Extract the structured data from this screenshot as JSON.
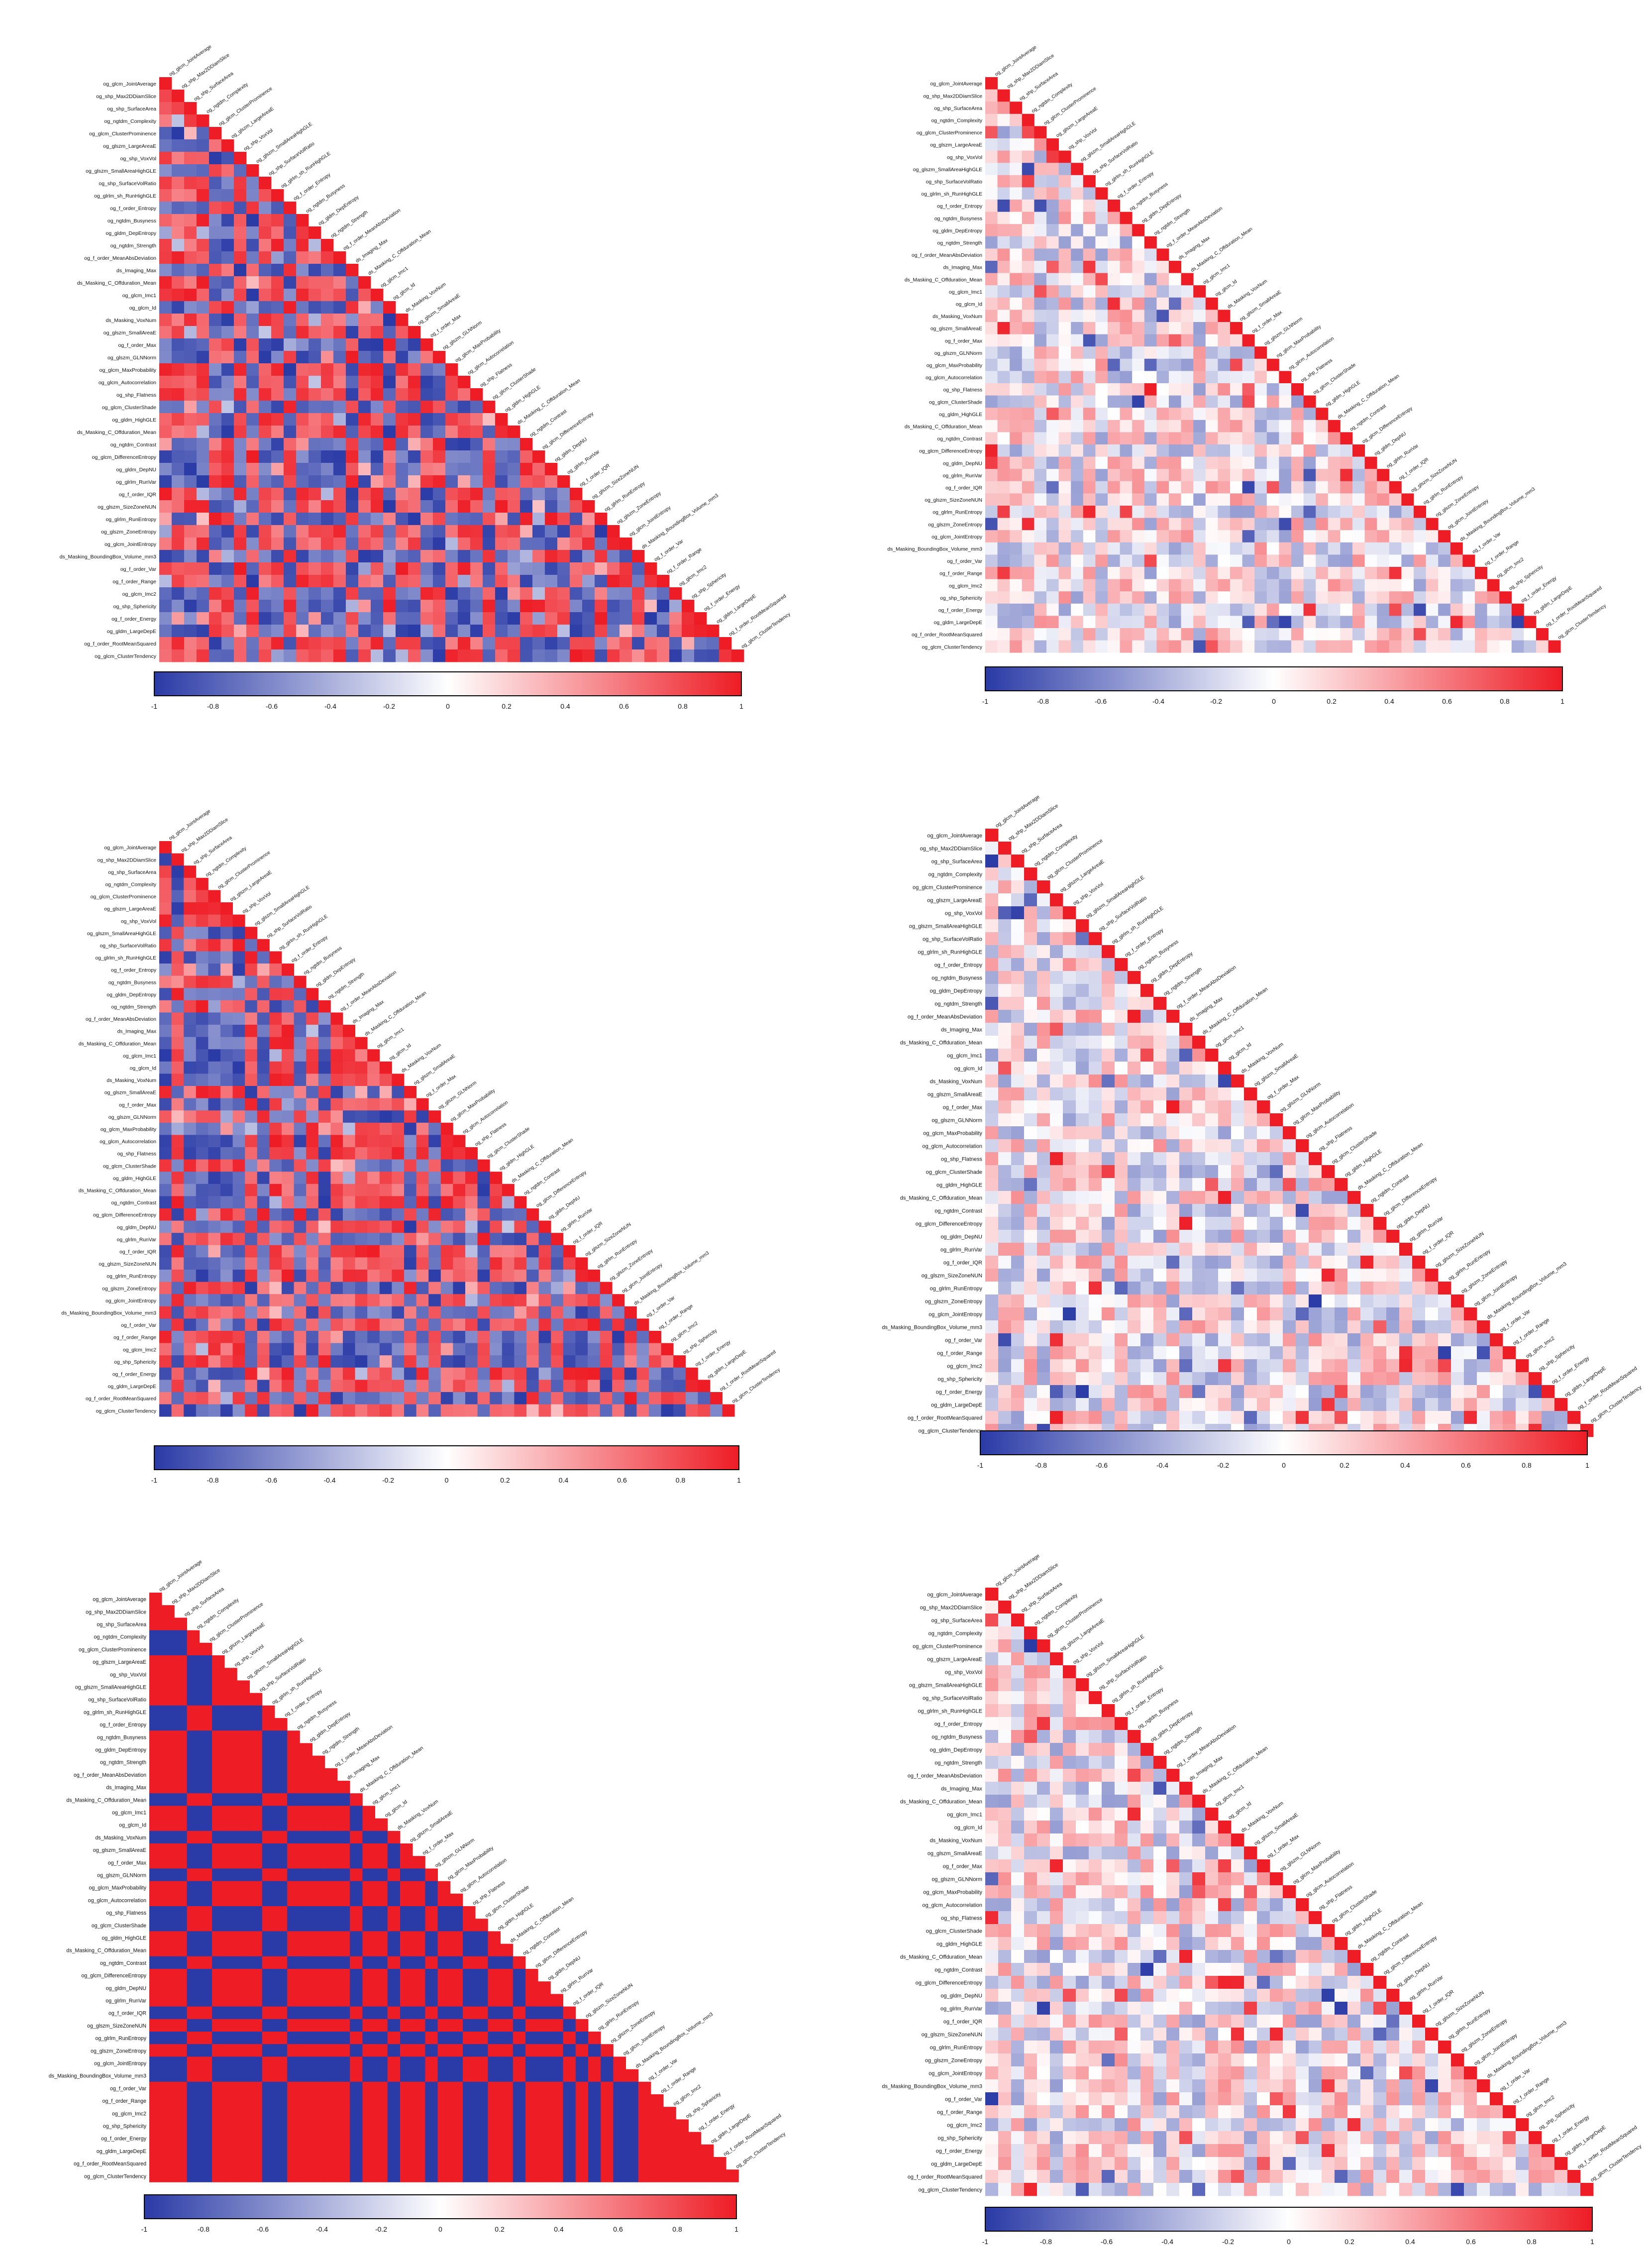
{
  "variables": [
    "og_glcm_JointAverage",
    "og_shp_Max2DDiamSlice",
    "og_shp_SurfaceArea",
    "og_ngtdm_Complexity",
    "og_glcm_ClusterProminence",
    "og_glszm_LargeAreaE",
    "og_shp_VoxVol",
    "og_glszm_SmallAreaHighGLE",
    "og_shp_SurfaceVolRatio",
    "og_glrlm_sh_RunHighGLE",
    "og_f_order_Entropy",
    "og_ngtdm_Busyness",
    "og_gldm_DepEntropy",
    "og_ngtdm_Strength",
    "og_f_order_MeanAbsDeviation",
    "ds_Imaging_Max",
    "ds_Masking_C_Offduration_Mean",
    "og_glcm_Imc1",
    "og_glcm_Id",
    "ds_Masking_VoxNum",
    "og_glszm_SmallAreaE",
    "og_f_order_Max",
    "og_glszm_GLNNorm",
    "og_glcm_MaxProbability",
    "og_glcm_Autocorrelation",
    "og_shp_Flatness",
    "og_glcm_ClusterShade",
    "og_gldm_HighGLE",
    "ds_Masking_C_Offduration_Mean",
    "og_ngtdm_Contrast",
    "og_glcm_DifferenceEntropy",
    "og_gldm_DepNU",
    "og_glrlm_RunVar",
    "og_f_order_IQR",
    "og_glszm_SizeZoneNUN",
    "og_glrlm_RunEntropy",
    "og_glszm_ZoneEntropy",
    "og_glcm_JointEntropy",
    "ds_Masking_BoundingBox_Volume_mm3",
    "og_f_order_Var",
    "og_f_order_Range",
    "og_glcm_Imc2",
    "og_shp_Sphericity",
    "og_f_order_Energy",
    "og_gldm_LargeDepE",
    "og_f_order_RootMeanSquared",
    "og_glcm_ClusterTendency"
  ],
  "colorbar": {
    "ticks": [
      "-1",
      "-0.8",
      "-0.6",
      "-0.4",
      "-0.2",
      "0",
      "0.2",
      "0.4",
      "0.6",
      "0.8",
      "1"
    ],
    "colors": {
      "negative": "#2a3aa6",
      "neutral": "#ffffff",
      "positive": "#ee1c25"
    }
  },
  "chart_data": [
    {
      "type": "heatmap",
      "position": "top-left",
      "matrix": "lower-triangular correlation",
      "value_range": [
        -1,
        1
      ],
      "pattern": "mixed strong positive/negative blocks",
      "seed": 11,
      "strength": 0.95,
      "mix": 0.55
    },
    {
      "type": "heatmap",
      "position": "top-right",
      "matrix": "lower-triangular correlation",
      "value_range": [
        -1,
        1
      ],
      "pattern": "mostly weak correlations, scattered strong cells",
      "seed": 23,
      "strength": 0.35,
      "mix": 0.6
    },
    {
      "type": "heatmap",
      "position": "middle-left",
      "matrix": "lower-triangular correlation",
      "value_range": [
        -1,
        1
      ],
      "pattern": "predominantly strong positive with blue column bands",
      "seed": 37,
      "strength": 0.95,
      "mix": 0.35
    },
    {
      "type": "heatmap",
      "position": "middle-right",
      "matrix": "lower-triangular correlation",
      "value_range": [
        -1,
        1
      ],
      "pattern": "mostly weak correlations, scattered strong cells",
      "seed": 41,
      "strength": 0.35,
      "mix": 0.6
    },
    {
      "type": "heatmap",
      "position": "bottom-left",
      "matrix": "lower-triangular correlation",
      "value_range": [
        -1,
        1
      ],
      "pattern": "binary checkerboard of +1/-1",
      "seed": 53,
      "strength": 1.0,
      "mix": 0.5
    },
    {
      "type": "heatmap",
      "position": "bottom-right",
      "matrix": "lower-triangular correlation",
      "value_range": [
        -1,
        1
      ],
      "pattern": "mostly weak correlations, scattered strong cells",
      "seed": 67,
      "strength": 0.35,
      "mix": 0.6
    }
  ]
}
